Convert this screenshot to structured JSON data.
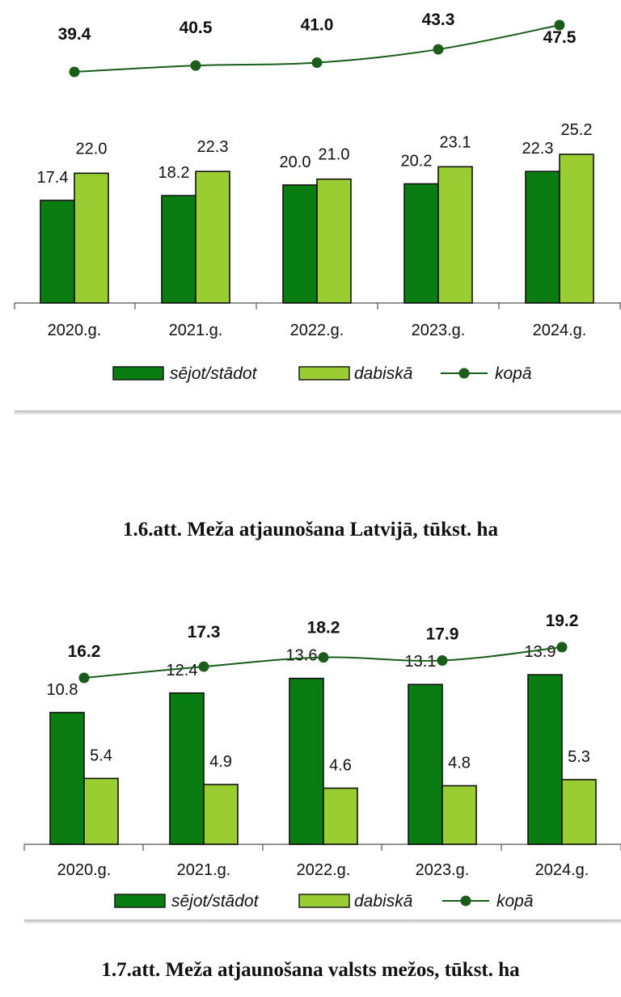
{
  "colors": {
    "planted": "#0a7d12",
    "natural": "#9acd32",
    "total": "#1a5c1a",
    "axis": "#555555"
  },
  "chart_data": [
    {
      "type": "bar",
      "title": "1.6.att. Meža atjaunošana Latvijā, tūkst. ha",
      "categories": [
        "2020.g.",
        "2021.g.",
        "2022.g.",
        "2023.g.",
        "2024.g."
      ],
      "series": [
        {
          "name": "sējot/stādot",
          "kind": "bar",
          "values": [
            17.4,
            18.2,
            20.0,
            20.2,
            22.3
          ],
          "labels": [
            "17.4",
            "18.2",
            "20.0",
            "20.2",
            "22.3"
          ]
        },
        {
          "name": "dabiskā",
          "kind": "bar",
          "values": [
            22.0,
            22.3,
            21.0,
            23.1,
            25.2
          ],
          "labels": [
            "22.0",
            "22.3",
            "21.0",
            "23.1",
            "25.2"
          ]
        },
        {
          "name": "kopā",
          "kind": "line",
          "values": [
            39.4,
            40.5,
            41.0,
            43.3,
            47.5
          ],
          "labels": [
            "39.4",
            "40.5",
            "41.0",
            "43.3",
            "47.5"
          ]
        }
      ],
      "legend": [
        "sējot/stādot",
        "dabiskā",
        "kopā"
      ],
      "legend_position": "bottom",
      "grid": false
    },
    {
      "type": "bar",
      "title": "1.7.att. Meža atjaunošana valsts mežos, tūkst. ha",
      "categories": [
        "2020.g.",
        "2021.g.",
        "2022.g.",
        "2023.g.",
        "2024.g."
      ],
      "series": [
        {
          "name": "sējot/stādot",
          "kind": "bar",
          "values": [
            10.8,
            12.4,
            13.6,
            13.1,
            13.9
          ],
          "labels": [
            "10.8",
            "12.4",
            "13.6",
            "13.1",
            "13.9"
          ]
        },
        {
          "name": "dabiskā",
          "kind": "bar",
          "values": [
            5.4,
            4.9,
            4.6,
            4.8,
            5.3
          ],
          "labels": [
            "5.4",
            "4.9",
            "4.6",
            "4.8",
            "5.3"
          ]
        },
        {
          "name": "kopā",
          "kind": "line",
          "values": [
            16.2,
            17.3,
            18.2,
            17.9,
            19.2
          ],
          "labels": [
            "16.2",
            "17.3",
            "18.2",
            "17.9",
            "19.2"
          ]
        }
      ],
      "legend": [
        "sējot/stādot",
        "dabiskā",
        "kopā"
      ],
      "legend_position": "bottom",
      "grid": false
    }
  ]
}
